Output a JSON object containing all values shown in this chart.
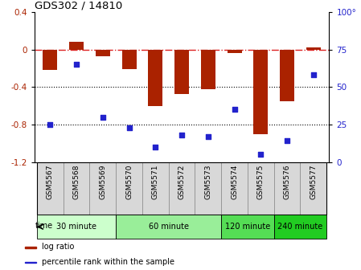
{
  "title": "GDS302 / 14810",
  "samples": [
    "GSM5567",
    "GSM5568",
    "GSM5569",
    "GSM5570",
    "GSM5571",
    "GSM5572",
    "GSM5573",
    "GSM5574",
    "GSM5575",
    "GSM5576",
    "GSM5577"
  ],
  "log_ratio": [
    -0.22,
    0.08,
    -0.07,
    -0.21,
    -0.6,
    -0.47,
    -0.42,
    -0.04,
    -0.9,
    -0.55,
    0.02
  ],
  "percentile": [
    25,
    65,
    30,
    23,
    10,
    18,
    17,
    35,
    5,
    14,
    58
  ],
  "groups": [
    {
      "label": "30 minute",
      "start": 0,
      "end": 3,
      "color": "#ccffcc"
    },
    {
      "label": "60 minute",
      "start": 3,
      "end": 7,
      "color": "#99ee99"
    },
    {
      "label": "120 minute",
      "start": 7,
      "end": 9,
      "color": "#55dd55"
    },
    {
      "label": "240 minute",
      "start": 9,
      "end": 11,
      "color": "#22cc22"
    }
  ],
  "bar_color": "#aa2200",
  "dot_color": "#2222cc",
  "ylim_left": [
    -1.2,
    0.4
  ],
  "ylim_right": [
    0,
    100
  ],
  "yticks_left": [
    0.4,
    0.0,
    -0.4,
    -0.8,
    -1.2
  ],
  "yticks_right": [
    100,
    75,
    50,
    25,
    0
  ],
  "hline_color": "#dd2222",
  "dotted_lines": [
    -0.4,
    -0.8
  ],
  "bg_color": "#ffffff",
  "time_label": "time",
  "legend": [
    {
      "color": "#aa2200",
      "label": "log ratio"
    },
    {
      "color": "#2222cc",
      "label": "percentile rank within the sample"
    }
  ],
  "sample_cell_color": "#d8d8d8",
  "right_axis_label": "100°"
}
